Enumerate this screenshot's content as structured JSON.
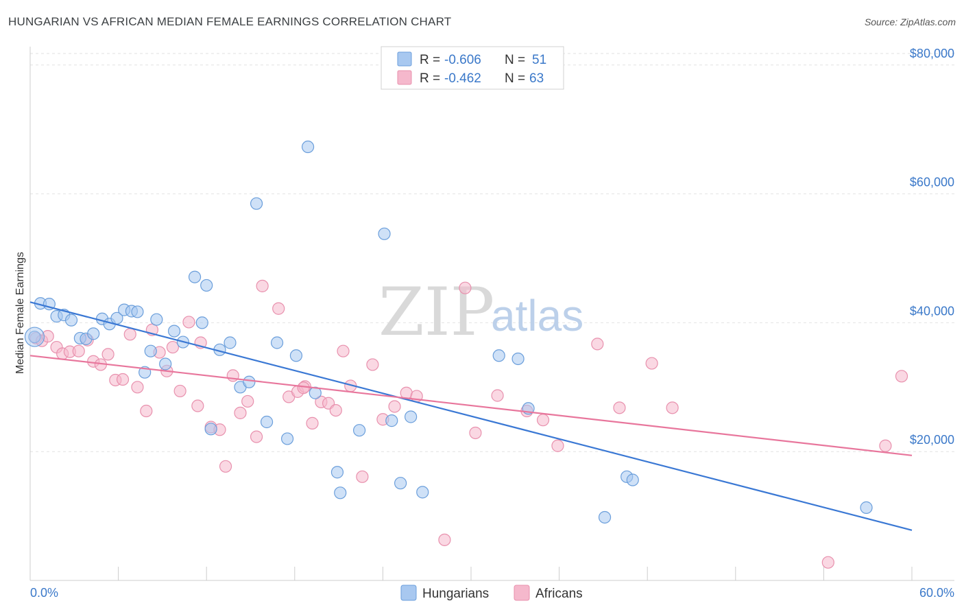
{
  "header": {
    "title": "HUNGARIAN VS AFRICAN MEDIAN FEMALE EARNINGS CORRELATION CHART",
    "source": "Source: ZipAtlas.com"
  },
  "watermark": {
    "zip": "ZIP",
    "atlas": "atlas"
  },
  "legend": {
    "r_label": "R =",
    "n_label": "N =",
    "rows": [
      {
        "r": "-0.606",
        "n": "51",
        "color": "#a8c8f0"
      },
      {
        "r": "-0.462",
        "n": "63",
        "color": "#f5b8cc"
      }
    ]
  },
  "bottom_legend": {
    "items": [
      {
        "label": "Hungarians",
        "color": "#a8c8f0"
      },
      {
        "label": "Africans",
        "color": "#f5b8cc"
      }
    ]
  },
  "colors": {
    "blue_line": "#3a78d4",
    "pink_line": "#e8769c",
    "blue_fill": "#a8c8f0",
    "pink_fill": "#f5b8cc",
    "axis_text": "#3a78c9"
  },
  "chart_data": {
    "type": "scatter",
    "title": "HUNGARIAN VS AFRICAN MEDIAN FEMALE EARNINGS CORRELATION CHART",
    "xlabel": "",
    "ylabel": "Median Female Earnings",
    "xlim": [
      0,
      60
    ],
    "ylim": [
      0,
      82000
    ],
    "x_tick_labels": [
      "0.0%",
      "60.0%"
    ],
    "y_ticks": [
      20000,
      40000,
      60000,
      80000
    ],
    "y_tick_labels": [
      "$20,000",
      "$40,000",
      "$60,000",
      "$80,000"
    ],
    "grid": true,
    "legend_position": "top-center",
    "series": [
      {
        "name": "Hungarians",
        "color": "#a8c8f0",
        "stroke": "#6a9edb",
        "trend": {
          "x": [
            0,
            60
          ],
          "y": [
            43200,
            7800
          ]
        },
        "points": [
          [
            0.7,
            43000
          ],
          [
            1.3,
            42900
          ],
          [
            1.8,
            41000
          ],
          [
            2.3,
            41200
          ],
          [
            2.8,
            40400
          ],
          [
            3.4,
            37600
          ],
          [
            3.8,
            37500
          ],
          [
            4.3,
            38300
          ],
          [
            4.9,
            40600
          ],
          [
            5.4,
            39800
          ],
          [
            5.9,
            40700
          ],
          [
            6.4,
            42000
          ],
          [
            6.9,
            41800
          ],
          [
            7.3,
            41700
          ],
          [
            7.8,
            32300
          ],
          [
            8.2,
            35600
          ],
          [
            8.6,
            40500
          ],
          [
            9.2,
            33600
          ],
          [
            9.8,
            38700
          ],
          [
            10.4,
            37000
          ],
          [
            11.2,
            47100
          ],
          [
            11.7,
            40000
          ],
          [
            12.0,
            45800
          ],
          [
            12.3,
            23500
          ],
          [
            12.9,
            35800
          ],
          [
            13.6,
            36900
          ],
          [
            14.3,
            30000
          ],
          [
            14.9,
            30800
          ],
          [
            15.4,
            58500
          ],
          [
            16.1,
            24600
          ],
          [
            16.8,
            36900
          ],
          [
            17.5,
            22000
          ],
          [
            18.1,
            34900
          ],
          [
            18.9,
            67300
          ],
          [
            19.4,
            29100
          ],
          [
            20.9,
            16800
          ],
          [
            21.1,
            13600
          ],
          [
            22.4,
            23300
          ],
          [
            24.1,
            53800
          ],
          [
            24.6,
            24800
          ],
          [
            25.2,
            15100
          ],
          [
            25.9,
            25400
          ],
          [
            26.7,
            13700
          ],
          [
            31.9,
            34900
          ],
          [
            33.2,
            34400
          ],
          [
            33.9,
            26700
          ],
          [
            39.1,
            9800
          ],
          [
            40.6,
            16100
          ],
          [
            41.0,
            15600
          ],
          [
            56.9,
            11300
          ],
          [
            0.3,
            37800
          ]
        ]
      },
      {
        "name": "Africans",
        "color": "#f5b8cc",
        "stroke": "#e890ad",
        "trend": {
          "x": [
            0,
            60
          ],
          "y": [
            34900,
            19400
          ]
        },
        "points": [
          [
            0.4,
            37600
          ],
          [
            0.8,
            37200
          ],
          [
            1.2,
            37900
          ],
          [
            1.8,
            36200
          ],
          [
            2.2,
            35200
          ],
          [
            2.7,
            35500
          ],
          [
            3.3,
            35600
          ],
          [
            3.9,
            37300
          ],
          [
            4.3,
            34000
          ],
          [
            4.8,
            33500
          ],
          [
            5.3,
            35100
          ],
          [
            5.8,
            31100
          ],
          [
            6.3,
            31200
          ],
          [
            6.8,
            38200
          ],
          [
            7.3,
            30000
          ],
          [
            7.9,
            26300
          ],
          [
            8.3,
            38900
          ],
          [
            8.8,
            35400
          ],
          [
            9.3,
            32500
          ],
          [
            9.7,
            36200
          ],
          [
            10.2,
            29400
          ],
          [
            10.8,
            40100
          ],
          [
            11.4,
            27100
          ],
          [
            11.6,
            36900
          ],
          [
            12.3,
            23800
          ],
          [
            12.9,
            23400
          ],
          [
            13.3,
            17700
          ],
          [
            13.8,
            31800
          ],
          [
            14.3,
            26000
          ],
          [
            14.8,
            27800
          ],
          [
            15.4,
            22300
          ],
          [
            15.8,
            45700
          ],
          [
            16.9,
            42200
          ],
          [
            17.6,
            28500
          ],
          [
            18.2,
            29300
          ],
          [
            18.7,
            30100
          ],
          [
            19.2,
            24400
          ],
          [
            19.8,
            27700
          ],
          [
            20.3,
            27500
          ],
          [
            20.8,
            26400
          ],
          [
            21.3,
            35600
          ],
          [
            21.8,
            30200
          ],
          [
            22.6,
            16100
          ],
          [
            23.3,
            33500
          ],
          [
            24.0,
            25000
          ],
          [
            24.8,
            27000
          ],
          [
            25.6,
            29100
          ],
          [
            26.3,
            28600
          ],
          [
            28.2,
            6300
          ],
          [
            29.6,
            45400
          ],
          [
            30.3,
            22900
          ],
          [
            31.8,
            28700
          ],
          [
            33.8,
            26300
          ],
          [
            34.9,
            24900
          ],
          [
            35.9,
            20900
          ],
          [
            38.6,
            36700
          ],
          [
            40.1,
            26800
          ],
          [
            42.3,
            33700
          ],
          [
            43.7,
            26800
          ],
          [
            54.3,
            2800
          ],
          [
            58.2,
            20900
          ],
          [
            59.3,
            31700
          ],
          [
            18.6,
            29900
          ]
        ]
      }
    ]
  }
}
